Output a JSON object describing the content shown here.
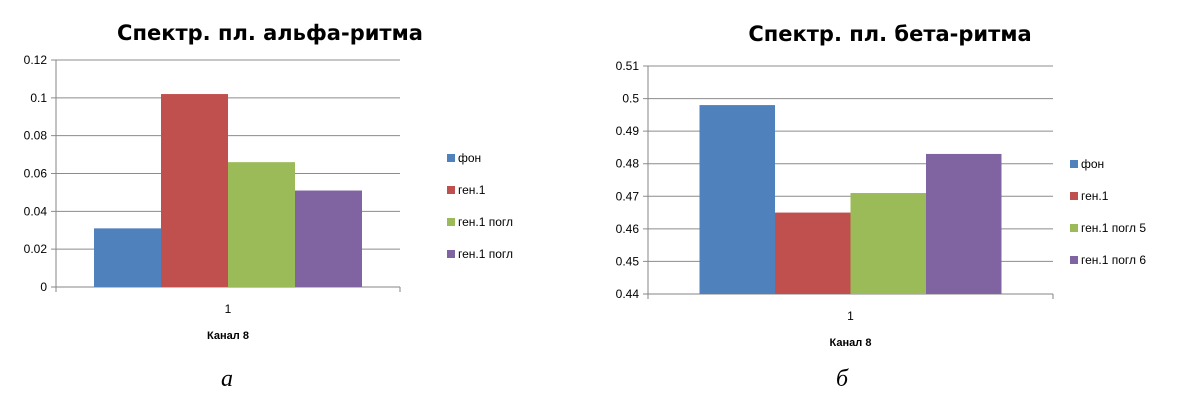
{
  "chart_data": [
    {
      "type": "bar",
      "title": "Спектр. пл. альфа-ритма",
      "categories": [
        "1"
      ],
      "xlabel": "Канал 8",
      "ylabel": "",
      "ylim": [
        0,
        0.12
      ],
      "yticks": [
        "0",
        "0.02",
        "0.04",
        "0.06",
        "0.08",
        "0.1",
        "0.12"
      ],
      "grid": true,
      "legend_position": "right",
      "series": [
        {
          "name": "фон",
          "values": [
            0.031
          ],
          "color": "#4f81bd"
        },
        {
          "name": "ген.1",
          "values": [
            0.102
          ],
          "color": "#c0504d"
        },
        {
          "name": "ген.1 погл",
          "values": [
            0.066
          ],
          "color": "#9bbb59"
        },
        {
          "name": "ген.1 погл",
          "values": [
            0.051
          ],
          "color": "#8064a2"
        }
      ]
    },
    {
      "type": "bar",
      "title": "Спектр. пл. бета-ритма",
      "categories": [
        "1"
      ],
      "xlabel": "Канал 8",
      "ylabel": "",
      "ylim": [
        0.44,
        0.51
      ],
      "yticks": [
        "0.44",
        "0.45",
        "0.46",
        "0.47",
        "0.48",
        "0.49",
        "0.5",
        "0.51"
      ],
      "grid": true,
      "legend_position": "right",
      "series": [
        {
          "name": "фон",
          "values": [
            0.498
          ],
          "color": "#4f81bd"
        },
        {
          "name": "ген.1",
          "values": [
            0.465
          ],
          "color": "#c0504d"
        },
        {
          "name": "ген.1 погл 5",
          "values": [
            0.471
          ],
          "color": "#9bbb59"
        },
        {
          "name": "ген.1 погл 6",
          "values": [
            0.483
          ],
          "color": "#8064a2"
        }
      ]
    }
  ],
  "captions": {
    "a": "а",
    "b": "б"
  }
}
